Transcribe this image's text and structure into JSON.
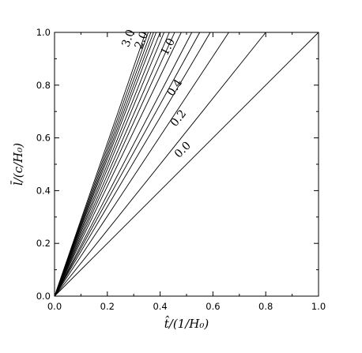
{
  "chart_data": {
    "type": "line",
    "title": "",
    "xlabel": "t̂/(1/H₀)",
    "ylabel": "l̄/(c/H₀)",
    "xlim": [
      0,
      1
    ],
    "ylim": [
      0,
      1
    ],
    "x_ticks": [
      "0.0",
      "0.2",
      "0.4",
      "0.6",
      "0.8",
      "1.0"
    ],
    "y_ticks": [
      "0.0",
      "0.2",
      "0.4",
      "0.6",
      "0.8",
      "1.0"
    ],
    "grid": false,
    "legend": "none",
    "series": [
      {
        "name": "0.0",
        "x": [
          0,
          1.0
        ],
        "y": [
          0,
          1.0
        ],
        "labeled": true
      },
      {
        "name": "0.2",
        "x": [
          0,
          0.8
        ],
        "y": [
          0,
          1.0
        ],
        "labeled": true
      },
      {
        "name": "0.4",
        "x": [
          0,
          0.66
        ],
        "y": [
          0,
          1.0
        ],
        "labeled": true
      },
      {
        "x": [
          0,
          0.59
        ],
        "y": [
          0,
          1.0
        ]
      },
      {
        "x": [
          0,
          0.55
        ],
        "y": [
          0,
          1.0
        ]
      },
      {
        "name": "1.0",
        "x": [
          0,
          0.52
        ],
        "y": [
          0,
          1.0
        ],
        "labeled": true
      },
      {
        "x": [
          0,
          0.48
        ],
        "y": [
          0,
          1.0
        ]
      },
      {
        "x": [
          0,
          0.455
        ],
        "y": [
          0,
          1.0
        ]
      },
      {
        "x": [
          0,
          0.435
        ],
        "y": [
          0,
          1.0
        ]
      },
      {
        "x": [
          0,
          0.415
        ],
        "y": [
          0,
          1.0
        ]
      },
      {
        "name": "2.0",
        "x": [
          0,
          0.4
        ],
        "y": [
          0,
          1.0
        ],
        "labeled": true
      },
      {
        "x": [
          0,
          0.385
        ],
        "y": [
          0,
          1.0
        ]
      },
      {
        "x": [
          0,
          0.375
        ],
        "y": [
          0,
          1.0
        ]
      },
      {
        "x": [
          0,
          0.365
        ],
        "y": [
          0,
          1.0
        ]
      },
      {
        "x": [
          0,
          0.355
        ],
        "y": [
          0,
          1.0
        ]
      },
      {
        "name": "3.0",
        "x": [
          0,
          0.345
        ],
        "y": [
          0,
          1.0
        ],
        "labeled": true
      }
    ]
  }
}
